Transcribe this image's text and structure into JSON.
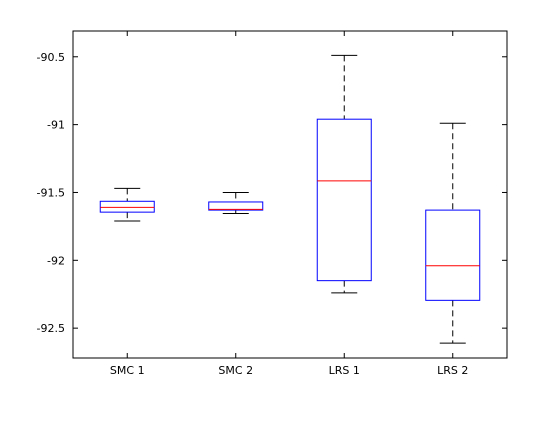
{
  "chart_data": {
    "type": "box",
    "title": "",
    "xlabel": "",
    "ylabel": "",
    "categories": [
      "SMC 1",
      "SMC 2",
      "LRS 1",
      "LRS 2"
    ],
    "ylim": [
      -92.72,
      -90.31
    ],
    "yticks": [
      -90.5,
      -91,
      -91.5,
      -92,
      -92.5
    ],
    "ytick_labels": [
      "-90.5",
      "-91",
      "-91.5",
      "-92",
      "-92.5"
    ],
    "grid": false,
    "boxes": [
      {
        "category": "SMC 1",
        "whisker_low": -91.71,
        "q1": -91.645,
        "median": -91.61,
        "q3": -91.565,
        "whisker_high": -91.47
      },
      {
        "category": "SMC 2",
        "whisker_low": -91.655,
        "q1": -91.63,
        "median": -91.625,
        "q3": -91.57,
        "whisker_high": -91.5
      },
      {
        "category": "LRS 1",
        "whisker_low": -92.24,
        "q1": -92.15,
        "median": -91.415,
        "q3": -90.96,
        "whisker_high": -90.49
      },
      {
        "category": "LRS 2",
        "whisker_low": -92.61,
        "q1": -92.295,
        "median": -92.04,
        "q3": -91.63,
        "whisker_high": -90.99
      }
    ],
    "colors": {
      "box": "#0000ff",
      "median": "#ff0000",
      "whisker": "#000000",
      "axis": "#000000"
    }
  }
}
